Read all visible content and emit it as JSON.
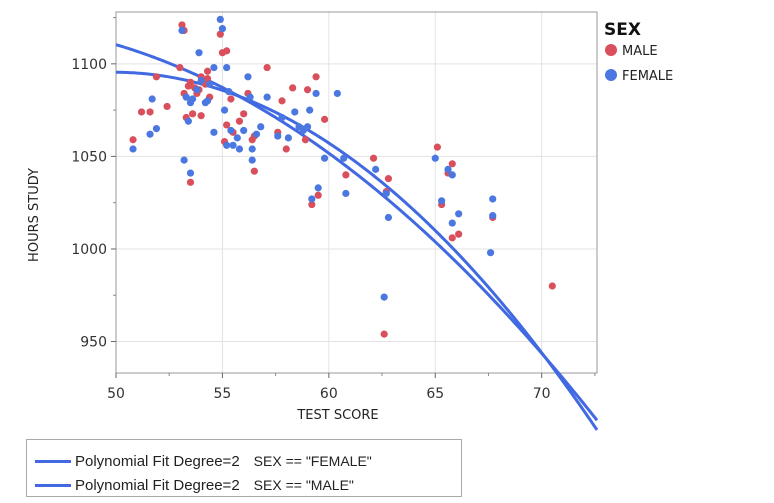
{
  "chart_data": {
    "type": "scatter",
    "title": "",
    "xlabel": "TEST SCORE",
    "ylabel": "HOURS STUDY",
    "xlim": [
      50,
      72.6
    ],
    "ylim": [
      933,
      1128
    ],
    "xticks": [
      50,
      55,
      60,
      65,
      70
    ],
    "yticks": [
      950,
      1000,
      1050,
      1100
    ],
    "grid": true,
    "legend": {
      "title": "SEX",
      "position": "right",
      "entries": [
        {
          "name": "MALE",
          "color": "#D94F5C"
        },
        {
          "name": "FEMALE",
          "color": "#4A78E0"
        }
      ]
    },
    "series": [
      {
        "name": "MALE",
        "color": "#D94F5C",
        "points": [
          [
            50.8,
            1059
          ],
          [
            51.2,
            1074
          ],
          [
            51.6,
            1074
          ],
          [
            51.9,
            1093
          ],
          [
            52.4,
            1077
          ],
          [
            53.0,
            1098
          ],
          [
            53.1,
            1121
          ],
          [
            53.2,
            1118
          ],
          [
            53.2,
            1084
          ],
          [
            53.3,
            1071
          ],
          [
            53.4,
            1088
          ],
          [
            53.5,
            1090
          ],
          [
            53.6,
            1073
          ],
          [
            53.7,
            1087
          ],
          [
            53.8,
            1084
          ],
          [
            53.9,
            1086
          ],
          [
            54.0,
            1072
          ],
          [
            54.0,
            1093
          ],
          [
            54.2,
            1089
          ],
          [
            54.3,
            1096
          ],
          [
            54.3,
            1092
          ],
          [
            54.4,
            1082
          ],
          [
            53.5,
            1036
          ],
          [
            54.9,
            1116
          ],
          [
            55.0,
            1106
          ],
          [
            55.1,
            1058
          ],
          [
            55.2,
            1107
          ],
          [
            55.2,
            1067
          ],
          [
            55.4,
            1081
          ],
          [
            55.5,
            1063
          ],
          [
            55.8,
            1069
          ],
          [
            56.0,
            1073
          ],
          [
            56.2,
            1084
          ],
          [
            56.4,
            1059
          ],
          [
            56.5,
            1061
          ],
          [
            56.5,
            1042
          ],
          [
            57.1,
            1098
          ],
          [
            57.6,
            1063
          ],
          [
            57.8,
            1080
          ],
          [
            58.0,
            1054
          ],
          [
            58.3,
            1087
          ],
          [
            58.9,
            1059
          ],
          [
            59.0,
            1086
          ],
          [
            59.2,
            1024
          ],
          [
            59.4,
            1093
          ],
          [
            59.5,
            1029
          ],
          [
            59.8,
            1070
          ],
          [
            60.8,
            1040
          ],
          [
            62.1,
            1049
          ],
          [
            62.6,
            954
          ],
          [
            62.7,
            1031
          ],
          [
            62.8,
            1038
          ],
          [
            65.1,
            1055
          ],
          [
            65.3,
            1024
          ],
          [
            65.6,
            1041
          ],
          [
            65.8,
            1046
          ],
          [
            65.8,
            1006
          ],
          [
            66.1,
            1008
          ],
          [
            67.7,
            1017
          ],
          [
            70.5,
            980
          ]
        ]
      },
      {
        "name": "FEMALE",
        "color": "#4A78E0",
        "points": [
          [
            50.8,
            1054
          ],
          [
            51.6,
            1062
          ],
          [
            51.7,
            1081
          ],
          [
            51.9,
            1065
          ],
          [
            53.1,
            1118
          ],
          [
            53.2,
            1048
          ],
          [
            53.3,
            1082
          ],
          [
            53.4,
            1069
          ],
          [
            53.5,
            1041
          ],
          [
            53.5,
            1079
          ],
          [
            53.6,
            1081
          ],
          [
            53.8,
            1086
          ],
          [
            53.9,
            1106
          ],
          [
            54.0,
            1091
          ],
          [
            54.2,
            1079
          ],
          [
            54.3,
            1080
          ],
          [
            54.4,
            1089
          ],
          [
            54.6,
            1063
          ],
          [
            54.6,
            1098
          ],
          [
            54.9,
            1124
          ],
          [
            55.0,
            1119
          ],
          [
            55.1,
            1075
          ],
          [
            55.2,
            1056
          ],
          [
            55.2,
            1098
          ],
          [
            55.3,
            1085
          ],
          [
            55.4,
            1064
          ],
          [
            55.5,
            1056
          ],
          [
            55.7,
            1060
          ],
          [
            55.8,
            1054
          ],
          [
            56.0,
            1064
          ],
          [
            56.2,
            1093
          ],
          [
            56.3,
            1082
          ],
          [
            56.4,
            1048
          ],
          [
            56.4,
            1054
          ],
          [
            56.6,
            1062
          ],
          [
            56.8,
            1066
          ],
          [
            57.1,
            1082
          ],
          [
            57.6,
            1061
          ],
          [
            57.8,
            1071
          ],
          [
            58.1,
            1060
          ],
          [
            58.4,
            1074
          ],
          [
            58.6,
            1066
          ],
          [
            58.8,
            1064
          ],
          [
            59.0,
            1066
          ],
          [
            59.1,
            1075
          ],
          [
            59.2,
            1027
          ],
          [
            59.4,
            1084
          ],
          [
            59.5,
            1033
          ],
          [
            59.8,
            1049
          ],
          [
            60.4,
            1084
          ],
          [
            60.7,
            1049
          ],
          [
            60.8,
            1030
          ],
          [
            62.2,
            1043
          ],
          [
            62.6,
            974
          ],
          [
            62.7,
            1030
          ],
          [
            62.8,
            1017
          ],
          [
            65.0,
            1049
          ],
          [
            65.3,
            1026
          ],
          [
            65.6,
            1043
          ],
          [
            65.8,
            1040
          ],
          [
            65.8,
            1014
          ],
          [
            66.1,
            1019
          ],
          [
            67.6,
            998
          ],
          [
            67.7,
            1027
          ],
          [
            67.7,
            1018
          ]
        ]
      }
    ],
    "fits": [
      {
        "name": "Polynomial Fit Degree=2",
        "condition": "SEX == \"FEMALE\"",
        "color": "#4169E1",
        "coeffs": [
          1073.8,
          -5.7,
          -0.375
        ],
        "center": 57.5,
        "x_range": [
          50,
          72.6
        ]
      },
      {
        "name": "Polynomial Fit Degree=2",
        "condition": "SEX == \"MALE\"",
        "color": "#4169E1",
        "coeffs": [
          1071.0,
          -7.1,
          -0.247
        ],
        "center": 57.5,
        "x_range": [
          50,
          72.6
        ]
      }
    ]
  }
}
